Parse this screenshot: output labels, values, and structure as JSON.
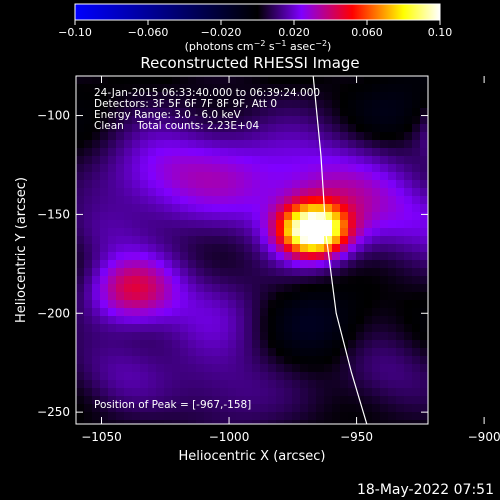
{
  "chart_data": {
    "type": "heatmap",
    "title": "Reconstructed RHESSI Image",
    "xlabel": "Heliocentric X (arcsec)",
    "ylabel": "Heliocentric Y (arcsec)",
    "xlim": [
      -1060,
      -922
    ],
    "ylim": [
      -256,
      -80
    ],
    "x_ticks": [
      -1050,
      -1000,
      -950,
      -900
    ],
    "y_ticks": [
      -100,
      -150,
      -200,
      -250
    ],
    "x_tick_labels": [
      "−1050",
      "−1000",
      "−950",
      "−900"
    ],
    "y_tick_labels": [
      "−100",
      "−150",
      "−200",
      "−250"
    ],
    "colorbar": {
      "range": [
        -0.1,
        0.1
      ],
      "ticks": [
        -0.1,
        -0.06,
        -0.02,
        0.02,
        0.06,
        0.1
      ],
      "tick_labels": [
        "−0.10",
        "−0.060",
        "−0.020",
        "0.020",
        "0.060",
        "0.10"
      ],
      "units_label": "(photons cm",
      "units_sup1": "−2",
      "units_mid": " s",
      "units_sup2": "−1",
      "units_mid2": " asec",
      "units_sup3": "−2",
      "units_end": ")",
      "colors": [
        "#0000ff",
        "#000000",
        "#7f00ff",
        "#ff0000",
        "#ffff00",
        "#ffffff"
      ]
    },
    "info_lines": [
      "24-Jan-2015 06:33:40.000 to 06:39:24.000",
      "Detectors: 3F 5F 6F 7F 8F 9F, Att 0",
      "Energy Range: 3.0 - 6.0 keV",
      "Clean    Total counts: 2.23E+04"
    ],
    "peak_label": "Position of Peak = [-967,-158]",
    "peak": {
      "x": -967,
      "y": -158
    },
    "sources": [
      {
        "x": -967,
        "y": -158,
        "value": 0.1,
        "width": 9
      },
      {
        "x": -960,
        "y": -140,
        "value": 0.03,
        "width": 22
      },
      {
        "x": -1038,
        "y": -188,
        "value": 0.04,
        "width": 12
      },
      {
        "x": -1005,
        "y": -130,
        "value": 0.02,
        "width": 20
      },
      {
        "x": -1030,
        "y": -130,
        "value": 0.018,
        "width": 16
      },
      {
        "x": -1010,
        "y": -200,
        "value": 0.016,
        "width": 18
      },
      {
        "x": -1000,
        "y": -240,
        "value": 0.014,
        "width": 16
      },
      {
        "x": -910,
        "y": -110,
        "value": 0.022,
        "width": 10
      },
      {
        "x": -925,
        "y": -150,
        "value": 0.015,
        "width": 14
      },
      {
        "x": -900,
        "y": -160,
        "value": 0.018,
        "width": 12
      },
      {
        "x": -940,
        "y": -230,
        "value": 0.013,
        "width": 14
      },
      {
        "x": -1045,
        "y": -230,
        "value": 0.014,
        "width": 14
      },
      {
        "x": -965,
        "y": -205,
        "value": -0.012,
        "width": 14
      },
      {
        "x": -935,
        "y": -100,
        "value": -0.01,
        "width": 12
      },
      {
        "x": -1050,
        "y": -160,
        "value": 0.012,
        "width": 12
      }
    ],
    "limb_curve": [
      [
        -967,
        -80
      ],
      [
        -964,
        -120
      ],
      [
        -962,
        -160
      ],
      [
        -958,
        -200
      ],
      [
        -952,
        -230
      ],
      [
        -946,
        -256
      ]
    ]
  },
  "footer": {
    "date": "18-May-2022 07:51"
  }
}
